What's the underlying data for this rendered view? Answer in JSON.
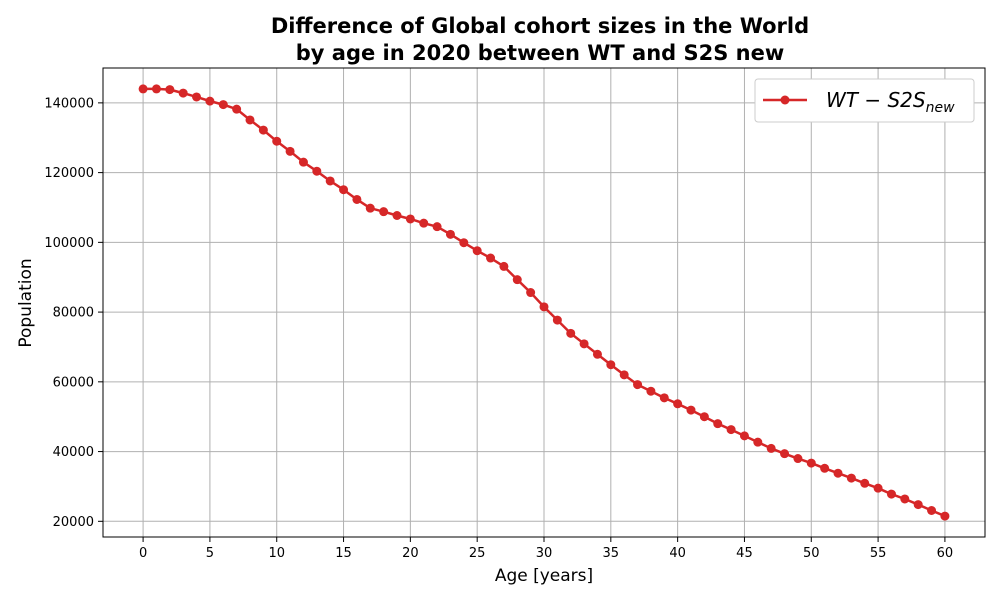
{
  "chart_data": {
    "type": "line",
    "title_line1": "Difference of Global cohort sizes in the World",
    "title_line2": "by age in 2020 between WT and S2S new",
    "xlabel": "Age [years]",
    "ylabel": "Population",
    "xlim": [
      -3,
      63
    ],
    "ylim": [
      15500,
      150000
    ],
    "xticks": [
      0,
      5,
      10,
      15,
      20,
      25,
      30,
      35,
      40,
      45,
      50,
      55,
      60
    ],
    "yticks": [
      20000,
      40000,
      60000,
      80000,
      100000,
      120000,
      140000
    ],
    "grid": true,
    "legend_position": "top-right",
    "series": [
      {
        "name": "WT − S2S",
        "name_subscript": "new",
        "color": "#d62728",
        "marker": "circle",
        "x": [
          0,
          1,
          2,
          3,
          4,
          5,
          6,
          7,
          8,
          9,
          10,
          11,
          12,
          13,
          14,
          15,
          16,
          17,
          18,
          19,
          20,
          21,
          22,
          23,
          24,
          25,
          26,
          27,
          28,
          29,
          30,
          31,
          32,
          33,
          34,
          35,
          36,
          37,
          38,
          39,
          40,
          41,
          42,
          43,
          44,
          45,
          46,
          47,
          48,
          49,
          50,
          51,
          52,
          53,
          54,
          55,
          56,
          57,
          58,
          59,
          60
        ],
        "values": [
          144000,
          144000,
          143800,
          142800,
          141700,
          140500,
          139500,
          138200,
          135100,
          132200,
          129000,
          126100,
          123000,
          120400,
          117600,
          115100,
          112300,
          109800,
          108800,
          107700,
          106700,
          105500,
          104500,
          102300,
          99900,
          97600,
          95500,
          93100,
          89300,
          85600,
          81500,
          77700,
          73900,
          70900,
          67900,
          64900,
          62000,
          59200,
          57300,
          55400,
          53700,
          51900,
          50000,
          48000,
          46300,
          44500,
          42700,
          40900,
          39400,
          38000,
          36700,
          35200,
          33800,
          32400,
          30900,
          29500,
          27800,
          26400,
          24800,
          23100,
          21500
        ]
      }
    ]
  }
}
